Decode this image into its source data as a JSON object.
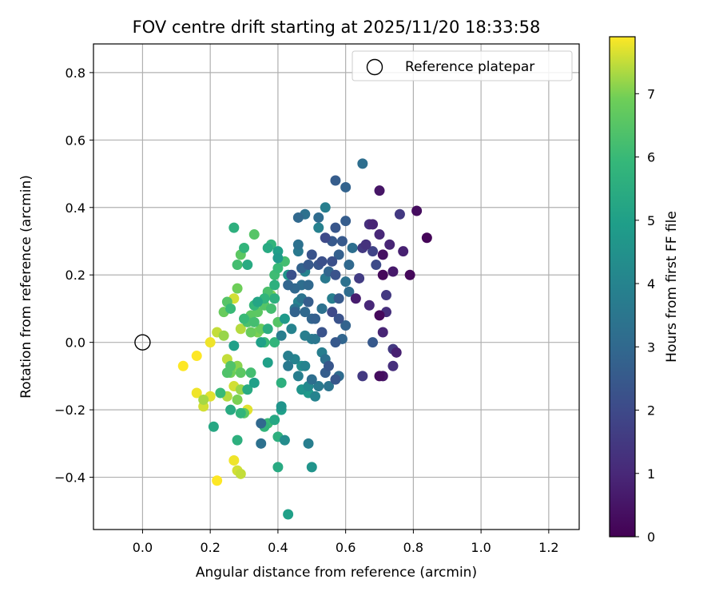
{
  "chart_data": {
    "type": "scatter",
    "title": "FOV centre drift starting at 2025/11/20 18:33:58",
    "xlabel": "Angular distance from reference (arcmin)",
    "ylabel": "Rotation from reference (arcmin)",
    "xlim": [
      -0.145,
      1.29
    ],
    "ylim": [
      -0.555,
      0.885
    ],
    "xticks": [
      "0.0",
      "0.2",
      "0.4",
      "0.6",
      "0.8",
      "1.0",
      "1.2"
    ],
    "xtick_values": [
      0.0,
      0.2,
      0.4,
      0.6,
      0.8,
      1.0,
      1.2
    ],
    "yticks": [
      "−0.4",
      "−0.2",
      "0.0",
      "0.2",
      "0.4",
      "0.6",
      "0.8"
    ],
    "ytick_values": [
      -0.4,
      -0.2,
      0.0,
      0.2,
      0.4,
      0.6,
      0.8
    ],
    "grid": true,
    "legend": {
      "position": "top-right",
      "label": "Reference platepar"
    },
    "reference_point": {
      "x": 0.0,
      "y": 0.0
    },
    "colorbar": {
      "label": "Hours from first FF file",
      "colormap": "viridis",
      "range": [
        0,
        7.9
      ],
      "ticks": [
        "0",
        "1",
        "2",
        "3",
        "4",
        "5",
        "6",
        "7"
      ],
      "tick_values": [
        0,
        1,
        2,
        3,
        4,
        5,
        6,
        7
      ]
    },
    "points": [
      {
        "x": 0.84,
        "y": 0.31,
        "c": 0.1
      },
      {
        "x": 0.81,
        "y": 0.39,
        "c": 0.3
      },
      {
        "x": 0.79,
        "y": 0.2,
        "c": 0.2
      },
      {
        "x": 0.77,
        "y": 0.27,
        "c": 0.8
      },
      {
        "x": 0.76,
        "y": 0.38,
        "c": 1.5
      },
      {
        "x": 0.74,
        "y": 0.21,
        "c": 0.6
      },
      {
        "x": 0.73,
        "y": 0.29,
        "c": 0.9
      },
      {
        "x": 0.72,
        "y": 0.14,
        "c": 1.5
      },
      {
        "x": 0.72,
        "y": 0.09,
        "c": 1.2
      },
      {
        "x": 0.71,
        "y": 0.03,
        "c": 0.9
      },
      {
        "x": 0.7,
        "y": 0.45,
        "c": 0.5
      },
      {
        "x": 0.71,
        "y": 0.26,
        "c": 0.4
      },
      {
        "x": 0.71,
        "y": 0.2,
        "c": 0.2
      },
      {
        "x": 0.7,
        "y": 0.32,
        "c": 1.0
      },
      {
        "x": 0.68,
        "y": 0.35,
        "c": 0.9
      },
      {
        "x": 0.67,
        "y": 0.35,
        "c": 1.2
      },
      {
        "x": 0.66,
        "y": 0.29,
        "c": 1.3
      },
      {
        "x": 0.65,
        "y": 0.28,
        "c": 1.5
      },
      {
        "x": 0.64,
        "y": 0.19,
        "c": 1.6
      },
      {
        "x": 0.63,
        "y": 0.13,
        "c": 0.7
      },
      {
        "x": 0.67,
        "y": 0.11,
        "c": 1.0
      },
      {
        "x": 0.7,
        "y": 0.08,
        "c": 0.2
      },
      {
        "x": 0.74,
        "y": -0.02,
        "c": 1.5
      },
      {
        "x": 0.75,
        "y": -0.03,
        "c": 0.8
      },
      {
        "x": 0.74,
        "y": -0.07,
        "c": 1.2
      },
      {
        "x": 0.7,
        "y": -0.1,
        "c": 0.3
      },
      {
        "x": 0.71,
        "y": -0.1,
        "c": 0.5
      },
      {
        "x": 0.65,
        "y": -0.1,
        "c": 1.5
      },
      {
        "x": 0.68,
        "y": 0.0,
        "c": 2.5
      },
      {
        "x": 0.69,
        "y": 0.23,
        "c": 2.0
      },
      {
        "x": 0.68,
        "y": 0.27,
        "c": 1.8
      },
      {
        "x": 0.65,
        "y": 0.53,
        "c": 3.2
      },
      {
        "x": 0.6,
        "y": 0.46,
        "c": 2.8
      },
      {
        "x": 0.57,
        "y": 0.48,
        "c": 2.6
      },
      {
        "x": 0.6,
        "y": 0.36,
        "c": 2.6
      },
      {
        "x": 0.57,
        "y": 0.34,
        "c": 2.4
      },
      {
        "x": 0.59,
        "y": 0.3,
        "c": 2.5
      },
      {
        "x": 0.58,
        "y": 0.26,
        "c": 2.7
      },
      {
        "x": 0.56,
        "y": 0.24,
        "c": 2.2
      },
      {
        "x": 0.57,
        "y": 0.2,
        "c": 2.3
      },
      {
        "x": 0.55,
        "y": 0.21,
        "c": 2.9
      },
      {
        "x": 0.53,
        "y": 0.24,
        "c": 2.2
      },
      {
        "x": 0.54,
        "y": 0.31,
        "c": 2.0
      },
      {
        "x": 0.56,
        "y": 0.3,
        "c": 2.5
      },
      {
        "x": 0.62,
        "y": 0.28,
        "c": 3.2
      },
      {
        "x": 0.61,
        "y": 0.23,
        "c": 3.0
      },
      {
        "x": 0.6,
        "y": 0.18,
        "c": 3.3
      },
      {
        "x": 0.61,
        "y": 0.15,
        "c": 3.1
      },
      {
        "x": 0.58,
        "y": 0.13,
        "c": 2.5
      },
      {
        "x": 0.56,
        "y": 0.09,
        "c": 2.0
      },
      {
        "x": 0.58,
        "y": 0.07,
        "c": 2.3
      },
      {
        "x": 0.6,
        "y": 0.05,
        "c": 2.8
      },
      {
        "x": 0.59,
        "y": 0.01,
        "c": 2.9
      },
      {
        "x": 0.57,
        "y": 0.0,
        "c": 2.5
      },
      {
        "x": 0.53,
        "y": 0.03,
        "c": 2.3
      },
      {
        "x": 0.51,
        "y": 0.07,
        "c": 2.7
      },
      {
        "x": 0.53,
        "y": 0.1,
        "c": 3.3
      },
      {
        "x": 0.56,
        "y": 0.13,
        "c": 3.8
      },
      {
        "x": 0.54,
        "y": 0.19,
        "c": 3.6
      },
      {
        "x": 0.52,
        "y": 0.37,
        "c": 3.1
      },
      {
        "x": 0.54,
        "y": 0.4,
        "c": 3.8
      },
      {
        "x": 0.48,
        "y": 0.38,
        "c": 3.3
      },
      {
        "x": 0.46,
        "y": 0.37,
        "c": 3.0
      },
      {
        "x": 0.52,
        "y": 0.34,
        "c": 3.9
      },
      {
        "x": 0.5,
        "y": 0.26,
        "c": 2.3
      },
      {
        "x": 0.52,
        "y": 0.23,
        "c": 2.4
      },
      {
        "x": 0.49,
        "y": 0.23,
        "c": 2.5
      },
      {
        "x": 0.47,
        "y": 0.22,
        "c": 2.8
      },
      {
        "x": 0.44,
        "y": 0.2,
        "c": 2.2
      },
      {
        "x": 0.46,
        "y": 0.27,
        "c": 3.6
      },
      {
        "x": 0.46,
        "y": 0.29,
        "c": 3.3
      },
      {
        "x": 0.43,
        "y": 0.17,
        "c": 2.9
      },
      {
        "x": 0.45,
        "y": 0.16,
        "c": 3.0
      },
      {
        "x": 0.47,
        "y": 0.17,
        "c": 3.2
      },
      {
        "x": 0.49,
        "y": 0.17,
        "c": 3.0
      },
      {
        "x": 0.48,
        "y": 0.21,
        "c": 4.0
      },
      {
        "x": 0.47,
        "y": 0.13,
        "c": 3.4
      },
      {
        "x": 0.49,
        "y": 0.12,
        "c": 2.6
      },
      {
        "x": 0.45,
        "y": 0.09,
        "c": 2.8
      },
      {
        "x": 0.48,
        "y": 0.09,
        "c": 3.0
      },
      {
        "x": 0.5,
        "y": 0.07,
        "c": 2.9
      },
      {
        "x": 0.53,
        "y": 0.1,
        "c": 3.6
      },
      {
        "x": 0.5,
        "y": 0.01,
        "c": 3.7
      },
      {
        "x": 0.51,
        "y": 0.01,
        "c": 3.5
      },
      {
        "x": 0.48,
        "y": 0.02,
        "c": 3.8
      },
      {
        "x": 0.53,
        "y": -0.03,
        "c": 3.8
      },
      {
        "x": 0.54,
        "y": -0.05,
        "c": 3.3
      },
      {
        "x": 0.55,
        "y": -0.07,
        "c": 2.4
      },
      {
        "x": 0.54,
        "y": -0.09,
        "c": 2.6
      },
      {
        "x": 0.57,
        "y": -0.11,
        "c": 2.4
      },
      {
        "x": 0.58,
        "y": -0.1,
        "c": 3.1
      },
      {
        "x": 0.55,
        "y": -0.13,
        "c": 3.4
      },
      {
        "x": 0.52,
        "y": -0.13,
        "c": 3.6
      },
      {
        "x": 0.5,
        "y": -0.11,
        "c": 3.2
      },
      {
        "x": 0.51,
        "y": -0.16,
        "c": 4.0
      },
      {
        "x": 0.49,
        "y": -0.15,
        "c": 4.8
      },
      {
        "x": 0.49,
        "y": -0.13,
        "c": 4.2
      },
      {
        "x": 0.47,
        "y": -0.14,
        "c": 4.6
      },
      {
        "x": 0.46,
        "y": -0.1,
        "c": 3.8
      },
      {
        "x": 0.47,
        "y": -0.07,
        "c": 4.4
      },
      {
        "x": 0.48,
        "y": -0.07,
        "c": 4.0
      },
      {
        "x": 0.43,
        "y": -0.04,
        "c": 3.8
      },
      {
        "x": 0.45,
        "y": -0.05,
        "c": 4.0
      },
      {
        "x": 0.43,
        "y": -0.07,
        "c": 3.6
      },
      {
        "x": 0.41,
        "y": 0.02,
        "c": 3.8
      },
      {
        "x": 0.44,
        "y": 0.04,
        "c": 4.0
      },
      {
        "x": 0.45,
        "y": 0.1,
        "c": 3.4
      },
      {
        "x": 0.46,
        "y": 0.12,
        "c": 4.0
      },
      {
        "x": 0.42,
        "y": 0.07,
        "c": 4.8
      },
      {
        "x": 0.41,
        "y": -0.12,
        "c": 5.6
      },
      {
        "x": 0.41,
        "y": -0.19,
        "c": 4.6
      },
      {
        "x": 0.41,
        "y": -0.2,
        "c": 5.0
      },
      {
        "x": 0.39,
        "y": -0.23,
        "c": 5.3
      },
      {
        "x": 0.37,
        "y": -0.24,
        "c": 6.0
      },
      {
        "x": 0.35,
        "y": -0.24,
        "c": 3.0
      },
      {
        "x": 0.36,
        "y": -0.25,
        "c": 5.8
      },
      {
        "x": 0.35,
        "y": -0.3,
        "c": 3.3
      },
      {
        "x": 0.4,
        "y": -0.28,
        "c": 5.6
      },
      {
        "x": 0.42,
        "y": -0.29,
        "c": 4.3
      },
      {
        "x": 0.4,
        "y": -0.37,
        "c": 5.4
      },
      {
        "x": 0.49,
        "y": -0.3,
        "c": 3.8
      },
      {
        "x": 0.5,
        "y": -0.37,
        "c": 4.6
      },
      {
        "x": 0.43,
        "y": -0.51,
        "c": 5.0
      },
      {
        "x": 0.43,
        "y": 0.2,
        "c": 4.6
      },
      {
        "x": 0.4,
        "y": 0.25,
        "c": 4.8
      },
      {
        "x": 0.4,
        "y": 0.27,
        "c": 5.0
      },
      {
        "x": 0.38,
        "y": 0.29,
        "c": 5.8
      },
      {
        "x": 0.37,
        "y": 0.28,
        "c": 5.4
      },
      {
        "x": 0.42,
        "y": 0.24,
        "c": 6.2
      },
      {
        "x": 0.4,
        "y": 0.22,
        "c": 6.0
      },
      {
        "x": 0.39,
        "y": 0.2,
        "c": 6.1
      },
      {
        "x": 0.39,
        "y": 0.17,
        "c": 5.6
      },
      {
        "x": 0.37,
        "y": 0.15,
        "c": 6.3
      },
      {
        "x": 0.36,
        "y": 0.13,
        "c": 5.8
      },
      {
        "x": 0.38,
        "y": 0.14,
        "c": 7.0
      },
      {
        "x": 0.36,
        "y": 0.11,
        "c": 6.5
      },
      {
        "x": 0.38,
        "y": 0.1,
        "c": 6.2
      },
      {
        "x": 0.34,
        "y": 0.12,
        "c": 5.2
      },
      {
        "x": 0.33,
        "y": 0.11,
        "c": 5.9
      },
      {
        "x": 0.32,
        "y": 0.08,
        "c": 6.6
      },
      {
        "x": 0.33,
        "y": 0.06,
        "c": 6.2
      },
      {
        "x": 0.35,
        "y": 0.04,
        "c": 6.8
      },
      {
        "x": 0.37,
        "y": 0.04,
        "c": 5.5
      },
      {
        "x": 0.39,
        "y": 0.0,
        "c": 5.8
      },
      {
        "x": 0.4,
        "y": 0.06,
        "c": 6.5
      },
      {
        "x": 0.35,
        "y": 0.0,
        "c": 5.0
      },
      {
        "x": 0.36,
        "y": 0.0,
        "c": 6.0
      },
      {
        "x": 0.37,
        "y": -0.06,
        "c": 5.0
      },
      {
        "x": 0.33,
        "y": -0.12,
        "c": 5.0
      },
      {
        "x": 0.31,
        "y": -0.14,
        "c": 5.4
      },
      {
        "x": 0.32,
        "y": -0.09,
        "c": 6.2
      },
      {
        "x": 0.29,
        "y": -0.09,
        "c": 6.6
      },
      {
        "x": 0.28,
        "y": -0.07,
        "c": 7.1
      },
      {
        "x": 0.26,
        "y": -0.07,
        "c": 6.4
      },
      {
        "x": 0.25,
        "y": -0.05,
        "c": 7.5
      },
      {
        "x": 0.26,
        "y": -0.09,
        "c": 6.9
      },
      {
        "x": 0.25,
        "y": -0.09,
        "c": 6.4
      },
      {
        "x": 0.27,
        "y": -0.01,
        "c": 5.0
      },
      {
        "x": 0.23,
        "y": -0.15,
        "c": 6.0
      },
      {
        "x": 0.26,
        "y": -0.2,
        "c": 5.4
      },
      {
        "x": 0.29,
        "y": -0.21,
        "c": 5.8
      },
      {
        "x": 0.3,
        "y": -0.21,
        "c": 6.6
      },
      {
        "x": 0.31,
        "y": -0.2,
        "c": 7.7
      },
      {
        "x": 0.28,
        "y": -0.17,
        "c": 7.0
      },
      {
        "x": 0.27,
        "y": -0.13,
        "c": 7.6
      },
      {
        "x": 0.29,
        "y": -0.14,
        "c": 7.2
      },
      {
        "x": 0.25,
        "y": -0.16,
        "c": 7.4
      },
      {
        "x": 0.21,
        "y": -0.25,
        "c": 5.3
      },
      {
        "x": 0.28,
        "y": -0.29,
        "c": 5.6
      },
      {
        "x": 0.2,
        "y": -0.16,
        "c": 7.7
      },
      {
        "x": 0.18,
        "y": -0.17,
        "c": 7.3
      },
      {
        "x": 0.18,
        "y": -0.19,
        "c": 7.6
      },
      {
        "x": 0.16,
        "y": -0.15,
        "c": 7.8
      },
      {
        "x": 0.16,
        "y": -0.04,
        "c": 7.9
      },
      {
        "x": 0.12,
        "y": -0.07,
        "c": 7.9
      },
      {
        "x": 0.2,
        "y": 0.0,
        "c": 7.8
      },
      {
        "x": 0.22,
        "y": 0.03,
        "c": 7.5
      },
      {
        "x": 0.24,
        "y": 0.02,
        "c": 7.2
      },
      {
        "x": 0.24,
        "y": 0.09,
        "c": 6.8
      },
      {
        "x": 0.25,
        "y": 0.12,
        "c": 6.5
      },
      {
        "x": 0.26,
        "y": 0.1,
        "c": 6.0
      },
      {
        "x": 0.27,
        "y": 0.13,
        "c": 7.6
      },
      {
        "x": 0.28,
        "y": 0.16,
        "c": 6.9
      },
      {
        "x": 0.28,
        "y": 0.23,
        "c": 6.2
      },
      {
        "x": 0.29,
        "y": 0.26,
        "c": 6.6
      },
      {
        "x": 0.3,
        "y": 0.28,
        "c": 5.8
      },
      {
        "x": 0.31,
        "y": 0.23,
        "c": 5.4
      },
      {
        "x": 0.33,
        "y": 0.32,
        "c": 6.5
      },
      {
        "x": 0.27,
        "y": 0.34,
        "c": 5.6
      },
      {
        "x": 0.29,
        "y": 0.04,
        "c": 7.4
      },
      {
        "x": 0.3,
        "y": 0.07,
        "c": 6.0
      },
      {
        "x": 0.31,
        "y": 0.06,
        "c": 6.3
      },
      {
        "x": 0.32,
        "y": 0.03,
        "c": 6.8
      },
      {
        "x": 0.34,
        "y": 0.03,
        "c": 7.0
      },
      {
        "x": 0.34,
        "y": 0.09,
        "c": 6.6
      },
      {
        "x": 0.39,
        "y": 0.13,
        "c": 5.6
      },
      {
        "x": 0.27,
        "y": -0.35,
        "c": 7.8
      },
      {
        "x": 0.28,
        "y": -0.38,
        "c": 7.6
      },
      {
        "x": 0.29,
        "y": -0.39,
        "c": 7.5
      },
      {
        "x": 0.22,
        "y": -0.41,
        "c": 7.9
      }
    ]
  }
}
